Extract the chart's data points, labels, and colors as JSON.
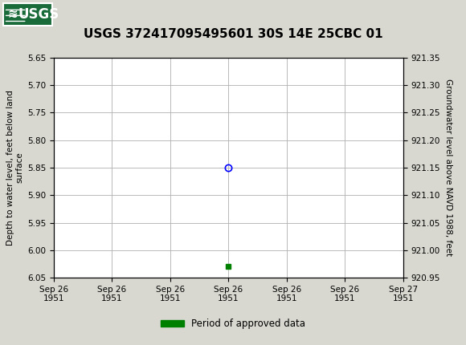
{
  "title": "USGS 372417095495601 30S 14E 25CBC 01",
  "ylabel_left": "Depth to water level, feet below land\nsurface",
  "ylabel_right": "Groundwater level above NAVD 1988, feet",
  "ylim_left": [
    5.65,
    6.05
  ],
  "ylim_right": [
    920.95,
    921.35
  ],
  "yticks_left": [
    5.65,
    5.7,
    5.75,
    5.8,
    5.85,
    5.9,
    5.95,
    6.0,
    6.05
  ],
  "yticks_right": [
    921.35,
    921.3,
    921.25,
    921.2,
    921.15,
    921.1,
    921.05,
    921.0,
    920.95
  ],
  "data_point_x_hours": 12,
  "data_point_y": 5.85,
  "data_point_color": "blue",
  "data_point_marker": "o",
  "green_marker_x_hours": 12,
  "green_marker_y": 6.03,
  "green_marker_color": "#008000",
  "background_color": "#d8d8d0",
  "plot_bg_color": "#ffffff",
  "grid_color": "#b0b0b0",
  "header_bg_color": "#1a6b3a",
  "legend_label": "Period of approved data",
  "legend_color": "#008000",
  "title_fontsize": 11,
  "axis_label_fontsize": 7.5,
  "tick_fontsize": 7.5,
  "x_tick_hours": [
    0,
    4,
    8,
    12,
    16,
    20,
    24
  ],
  "x_tick_labels": [
    "Sep 26\n1951",
    "Sep 26\n1951",
    "Sep 26\n1951",
    "Sep 26\n1951",
    "Sep 26\n1951",
    "Sep 26\n1951",
    "Sep 27\n1951"
  ]
}
